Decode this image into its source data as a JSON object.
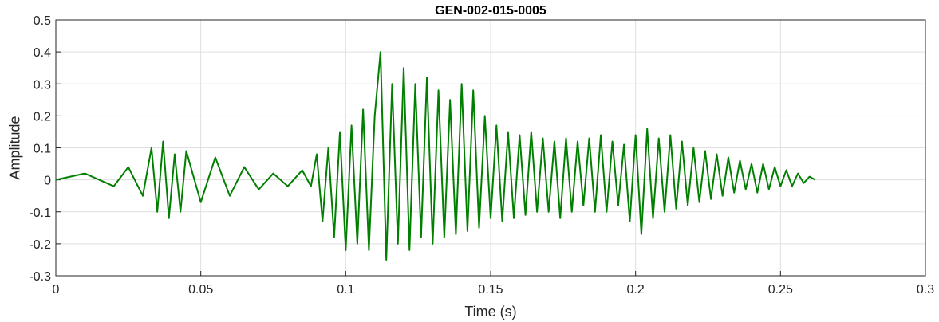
{
  "chart_data": {
    "type": "line",
    "title": "GEN-002-015-0005",
    "xlabel": "Time (s)",
    "ylabel": "Amplitude",
    "xlim": [
      0,
      0.3
    ],
    "ylim": [
      -0.3,
      0.5
    ],
    "xticks": [
      0,
      0.05,
      0.1,
      0.15,
      0.2,
      0.25,
      0.3
    ],
    "xtick_labels": [
      "0",
      "0.05",
      "0.1",
      "0.15",
      "0.2",
      "0.25",
      "0.3"
    ],
    "yticks": [
      -0.3,
      -0.2,
      -0.1,
      0,
      0.1,
      0.2,
      0.3,
      0.4,
      0.5
    ],
    "ytick_labels": [
      "-0.3",
      "-0.2",
      "-0.1",
      "0",
      "0.1",
      "0.2",
      "0.3",
      "0.4",
      "0.5"
    ],
    "grid": true,
    "line_color": "#007f00",
    "series": [
      {
        "x": [
          0,
          0.01,
          0.02,
          0.025,
          0.03,
          0.033,
          0.035,
          0.037,
          0.039,
          0.041,
          0.043,
          0.045,
          0.05,
          0.055,
          0.06,
          0.065,
          0.07,
          0.075,
          0.08,
          0.085,
          0.088,
          0.09,
          0.092,
          0.094,
          0.096,
          0.098,
          0.1,
          0.102,
          0.104,
          0.106,
          0.108,
          0.11,
          0.112,
          0.114,
          0.116,
          0.118,
          0.12,
          0.122,
          0.124,
          0.126,
          0.128,
          0.13,
          0.132,
          0.134,
          0.136,
          0.138,
          0.14,
          0.142,
          0.144,
          0.146,
          0.148,
          0.15,
          0.152,
          0.154,
          0.156,
          0.158,
          0.16,
          0.162,
          0.164,
          0.166,
          0.168,
          0.17,
          0.172,
          0.174,
          0.176,
          0.178,
          0.18,
          0.182,
          0.184,
          0.186,
          0.188,
          0.19,
          0.192,
          0.194,
          0.196,
          0.198,
          0.2,
          0.202,
          0.204,
          0.206,
          0.208,
          0.21,
          0.212,
          0.214,
          0.216,
          0.218,
          0.22,
          0.222,
          0.224,
          0.226,
          0.228,
          0.23,
          0.232,
          0.234,
          0.236,
          0.238,
          0.24,
          0.242,
          0.244,
          0.246,
          0.248,
          0.25,
          0.252,
          0.254,
          0.256,
          0.258,
          0.26,
          0.262
        ],
        "y": [
          0.0,
          0.02,
          -0.02,
          0.04,
          -0.05,
          0.1,
          -0.1,
          0.12,
          -0.12,
          0.08,
          -0.1,
          0.09,
          -0.07,
          0.07,
          -0.05,
          0.04,
          -0.03,
          0.02,
          -0.02,
          0.03,
          -0.02,
          0.08,
          -0.13,
          0.1,
          -0.18,
          0.15,
          -0.22,
          0.17,
          -0.2,
          0.22,
          -0.22,
          0.2,
          0.4,
          -0.25,
          0.3,
          -0.2,
          0.35,
          -0.22,
          0.3,
          -0.18,
          0.32,
          -0.2,
          0.28,
          -0.18,
          0.25,
          -0.17,
          0.3,
          -0.16,
          0.28,
          -0.15,
          0.2,
          -0.12,
          0.17,
          -0.13,
          0.15,
          -0.12,
          0.14,
          -0.11,
          0.15,
          -0.1,
          0.13,
          -0.1,
          0.12,
          -0.12,
          0.13,
          -0.1,
          0.12,
          -0.08,
          0.13,
          -0.1,
          0.14,
          -0.1,
          0.12,
          -0.08,
          0.11,
          -0.13,
          0.14,
          -0.17,
          0.16,
          -0.12,
          0.13,
          -0.1,
          0.14,
          -0.09,
          0.12,
          -0.08,
          0.1,
          -0.07,
          0.09,
          -0.06,
          0.08,
          -0.05,
          0.07,
          -0.04,
          0.06,
          -0.03,
          0.05,
          -0.04,
          0.05,
          -0.03,
          0.04,
          -0.02,
          0.03,
          -0.02,
          0.02,
          -0.01,
          0.01,
          0.0
        ]
      }
    ]
  }
}
